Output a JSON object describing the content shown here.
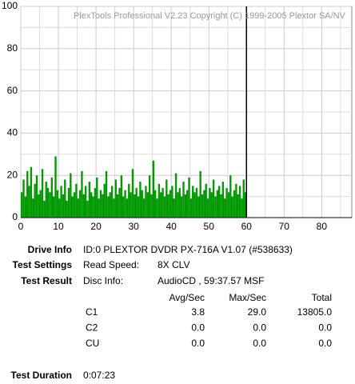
{
  "chart_data": {
    "type": "bar",
    "title": "PlexTools Professional V2.23 Copyright (C) 1999-2005 Plextor SA/NV",
    "color": "#009900",
    "x": [
      0,
      0.5,
      1,
      1.5,
      2,
      2.5,
      3,
      3.5,
      4,
      4.5,
      5,
      5.5,
      6,
      6.5,
      7,
      7.5,
      8,
      8.5,
      9,
      9.5,
      10,
      10.5,
      11,
      11.5,
      12,
      12.5,
      13,
      13.5,
      14,
      14.5,
      15,
      15.5,
      16,
      16.5,
      17,
      17.5,
      18,
      18.5,
      19,
      19.5,
      20,
      20.5,
      21,
      21.5,
      22,
      22.5,
      23,
      23.5,
      24,
      24.5,
      25,
      25.5,
      26,
      26.5,
      27,
      27.5,
      28,
      28.5,
      29,
      29.5,
      30,
      30.5,
      31,
      31.5,
      32,
      32.5,
      33,
      33.5,
      34,
      34.5,
      35,
      35.5,
      36,
      36.5,
      37,
      37.5,
      38,
      38.5,
      39,
      39.5,
      40,
      40.5,
      41,
      41.5,
      42,
      42.5,
      43,
      43.5,
      44,
      44.5,
      45,
      45.5,
      46,
      46.5,
      47,
      47.5,
      48,
      48.5,
      49,
      49.5,
      50,
      50.5,
      51,
      51.5,
      52,
      52.5,
      53,
      53.5,
      54,
      54.5,
      55,
      55.5,
      56,
      56.5,
      57,
      57.5,
      58,
      58.5,
      59,
      59.5
    ],
    "values": [
      12,
      18,
      10,
      22,
      15,
      24,
      9,
      16,
      20,
      11,
      13,
      23,
      8,
      17,
      14,
      12,
      19,
      10,
      29,
      13,
      9,
      15,
      11,
      18,
      8,
      14,
      21,
      10,
      12,
      16,
      9,
      13,
      22,
      11,
      15,
      8,
      17,
      12,
      10,
      14,
      19,
      9,
      13,
      11,
      16,
      22,
      10,
      12,
      15,
      9,
      18,
      11,
      14,
      20,
      10,
      13,
      9,
      16,
      12,
      23,
      11,
      14,
      10,
      17,
      13,
      9,
      15,
      12,
      20,
      11,
      27,
      13,
      9,
      16,
      12,
      14,
      10,
      18,
      11,
      13,
      15,
      9,
      21,
      12,
      14,
      10,
      17,
      11,
      13,
      19,
      9,
      15,
      12,
      14,
      10,
      22,
      11,
      13,
      16,
      9,
      14,
      12,
      18,
      10,
      13,
      15,
      11,
      17,
      9,
      14,
      12,
      20,
      10,
      13,
      16,
      11,
      15,
      9,
      18,
      12
    ],
    "xlim": [
      0,
      88
    ],
    "ylim": [
      0,
      100
    ],
    "xticks": [
      0,
      10,
      20,
      30,
      40,
      50,
      60,
      70,
      80
    ],
    "yticks": [
      0,
      20,
      40,
      60,
      80,
      100
    ],
    "xminor": [
      5,
      15,
      25,
      35,
      45,
      55,
      65,
      75,
      85
    ],
    "yminor": [
      10,
      30,
      50,
      70,
      90
    ],
    "end_line_x": 60,
    "grid": true
  },
  "info": {
    "drive_info": {
      "label": "Drive Info",
      "value": "ID:0 PLEXTOR DVDR PX-716A V1.07 (#538633)"
    },
    "test_settings": {
      "label": "Test Settings",
      "key": "Read Speed:",
      "value": "8X CLV"
    },
    "test_result": {
      "label": "Test Result",
      "key": "Disc Info:",
      "value": "AudioCD , 59:37.57 MSF"
    },
    "table": {
      "headers": [
        "Avg/Sec",
        "Max/Sec",
        "Total"
      ],
      "rows": [
        [
          "C1",
          "3.8",
          "29.0",
          "13805.0"
        ],
        [
          "C2",
          "0.0",
          "0.0",
          "0.0"
        ],
        [
          "CU",
          "0.0",
          "0.0",
          "0.0"
        ]
      ]
    },
    "test_duration": {
      "label": "Test Duration",
      "value": "0:07:23"
    }
  }
}
